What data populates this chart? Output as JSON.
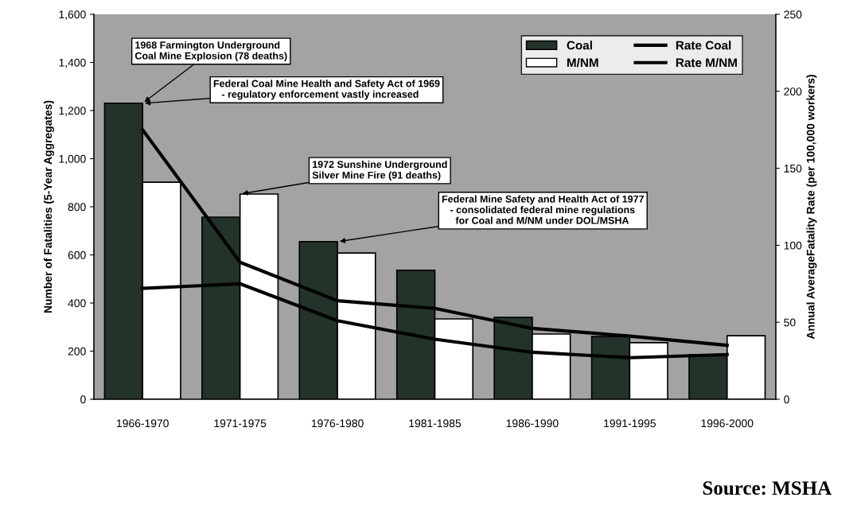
{
  "chart_data": {
    "type": "bar",
    "ylabel": "Number of Fatalities (5-Year Aggregates)",
    "y2label": "Annual AverageFatality Rate (per 100,000 workers)",
    "categories": [
      "1966-1970",
      "1971-1975",
      "1976-1980",
      "1981-1985",
      "1986-1990",
      "1991-1995",
      "1996-2000"
    ],
    "series": [
      {
        "name": "Coal",
        "color": "#243329",
        "values": [
          1230,
          757,
          655,
          536,
          340,
          261,
          185
        ]
      },
      {
        "name": "M/NM",
        "color": "#ffffff",
        "values": [
          902,
          853,
          608,
          334,
          271,
          235,
          264
        ]
      },
      {
        "name": "Rate Coal",
        "type": "line",
        "axis": "y2",
        "color": "#000000",
        "values": [
          175,
          89,
          64,
          59,
          46,
          41,
          35
        ]
      },
      {
        "name": "Rate M/NM",
        "type": "line",
        "axis": "y2",
        "color": "#000000",
        "values": [
          72,
          75,
          51,
          39,
          30.5,
          27,
          29
        ]
      }
    ],
    "ylim": [
      0,
      1600
    ],
    "yticks": [
      0,
      {
        "value": 200,
        "label": "200"
      },
      {
        "value": 400,
        "label": "400"
      },
      {
        "value": 600,
        "label": "600"
      },
      {
        "value": 800,
        "label": "800"
      },
      {
        "value": 1000,
        "label": "1,000"
      },
      {
        "value": 1200,
        "label": "1,200"
      },
      {
        "value": 1400,
        "label": "1,400"
      },
      {
        "value": 1600,
        "label": "1,600"
      }
    ],
    "y2lim": [
      0,
      250
    ],
    "y2ticks": [
      0,
      50,
      100,
      150,
      200,
      250
    ],
    "legend": "top right",
    "marker": "none",
    "line_style": "solid",
    "annotations": [
      {
        "text": "1968 Farmington Underground\nCoal Mine Explosion (78 deaths)",
        "x": "1966-1970",
        "y": 1230
      },
      {
        "text": "Federal Coal Mine Health and Safety Act of 1969\n   - regulatory enforcement vastly increased",
        "x": "1966-1970",
        "y": 1230
      },
      {
        "text": "1972 Sunshine Underground\nSilver Mine Fire (91 deaths)",
        "x": "1971-1975",
        "y": 853
      },
      {
        "text": "Federal Mine Safety and Health Act of 1977\n   - consolidated federal mine regulations\n     for Coal and M/NM under DOL/MSHA",
        "x": "1976-1980",
        "y": 655
      },
      "Source: MSHA"
    ]
  }
}
